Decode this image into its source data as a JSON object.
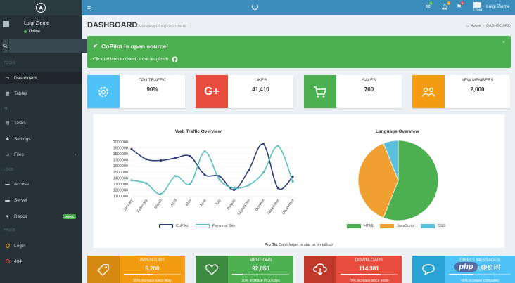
{
  "sidebar": {
    "user": {
      "name": "Luigi Zieme",
      "status": "Online"
    },
    "sections": {
      "tools": "TOOLS",
      "hr": "HR",
      "logs": "LOGS",
      "pages": "PAGES"
    },
    "items": [
      {
        "label": "Dashboard"
      },
      {
        "label": "Tables"
      },
      {
        "label": "Tasks"
      },
      {
        "label": "Settings"
      },
      {
        "label": "Files"
      },
      {
        "label": "Access"
      },
      {
        "label": "Server"
      },
      {
        "label": "Repos",
        "badge": "AJAX"
      },
      {
        "label": "Login"
      },
      {
        "label": "404"
      }
    ]
  },
  "topbar": {
    "badges": {
      "mail": "5",
      "bell": "8",
      "flag": "6"
    },
    "user_word": "User",
    "user_name": "Luigi Zieme"
  },
  "page": {
    "title": "DASHBOARD",
    "subtitle": "Overview of environment",
    "breadcrumb": {
      "home": "Home",
      "current": "DASHBOARD",
      "separator": "›"
    }
  },
  "alert": {
    "title": "CoPilot is open source!",
    "text": "Click on icon to check it out on github."
  },
  "info_boxes": [
    {
      "label": "CPU TRAFFIC",
      "value": "90%",
      "icon": "gear-icon",
      "color": "#4fc3f7"
    },
    {
      "label": "LIKES",
      "value": "41,410",
      "icon": "google-plus-icon",
      "color": "#e74c3c"
    },
    {
      "label": "SALES",
      "value": "760",
      "icon": "cart-icon",
      "color": "#4caf50"
    },
    {
      "label": "NEW MEMBERS",
      "value": "2,000",
      "icon": "group-icon",
      "color": "#f39c12"
    }
  ],
  "chart_data": [
    {
      "type": "line",
      "title": "Web Traffic Overview",
      "categories": [
        "January",
        "February",
        "March",
        "April",
        "May",
        "June",
        "July",
        "August",
        "September",
        "October",
        "November",
        "December"
      ],
      "yticks": [
        "2000000",
        "1900000",
        "1800000",
        "1700000",
        "1600000",
        "1500000",
        "1400000",
        "1300000",
        "1200000",
        "1100000"
      ],
      "ylim": [
        1100000,
        2000000
      ],
      "series": [
        {
          "name": "CoPilot",
          "color": "#2c3e7a",
          "values": [
            1880000,
            1710000,
            1690000,
            1730000,
            1760000,
            1450000,
            1430000,
            1200000,
            1530000,
            1960000,
            1230000,
            1420000
          ]
        },
        {
          "name": "Personal Site",
          "color": "#5bc0be",
          "values": [
            1360000,
            1310000,
            1130000,
            1430000,
            1300000,
            1840000,
            1370000,
            1230000,
            1280000,
            1490000,
            1930000,
            1340000
          ]
        }
      ]
    },
    {
      "type": "pie",
      "title": "Language Overview",
      "categories": [
        "HTML",
        "JavaScript",
        "CSS"
      ],
      "values": [
        56,
        38,
        6
      ],
      "colors": [
        "#4caf50",
        "#f0a030",
        "#5bc0de"
      ]
    }
  ],
  "pro_tip": {
    "label": "Pro Tip",
    "text": "Don't forget to star us on github!"
  },
  "bottom_boxes": [
    {
      "label": "INVENTORY",
      "value": "5,200",
      "progress": 50,
      "desc": "50% increase since May",
      "icon": "tag-icon",
      "color": "#f39c12",
      "icon_bg": "#d68910"
    },
    {
      "label": "MENTIONS",
      "value": "92,050",
      "progress": 20,
      "desc": "20% increase in 30 days",
      "icon": "heart-icon",
      "color": "#4caf50",
      "icon_bg": "#3d8b40"
    },
    {
      "label": "DOWNLOADS",
      "value": "114,381",
      "progress": 70,
      "desc": "70% increase since yeste",
      "icon": "cloud-download-icon",
      "color": "#e74c3c",
      "icon_bg": "#c0392b"
    },
    {
      "label": "DIRECT MESSAGES",
      "value": "163,921",
      "progress": 40,
      "desc": "40% increase compared",
      "icon": "chat-icon",
      "color": "#4fc3f7",
      "icon_bg": "#29a3d6"
    }
  ],
  "watermark": {
    "brand": "php",
    "site": "中文网"
  }
}
